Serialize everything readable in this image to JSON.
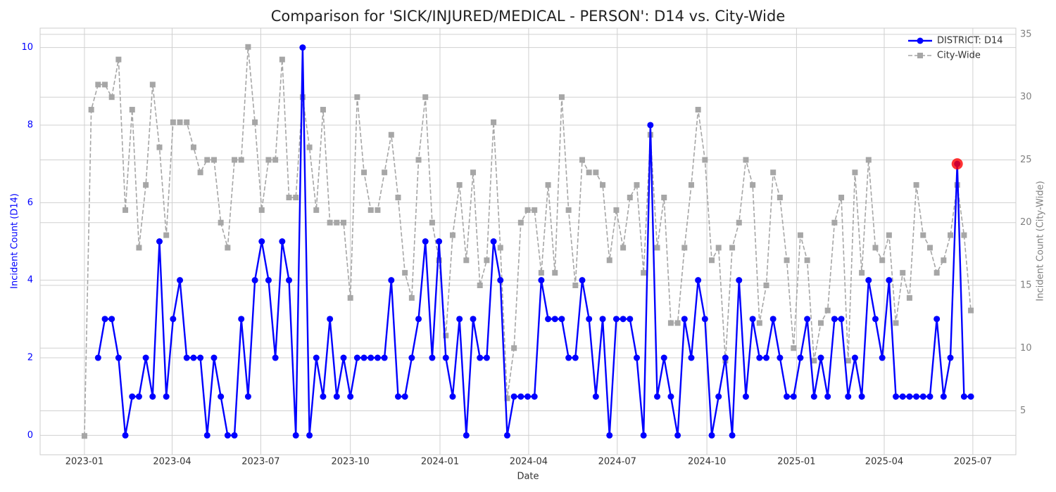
{
  "chart_data": {
    "type": "line",
    "title": "Comparison for 'SICK/INJURED/MEDICAL - PERSON': D14 vs. City-Wide",
    "xlabel": "Date",
    "ylabel": "Incident Count (D14)",
    "y2label": "Incident Count (City-Wide)",
    "xlim": [
      -6.5,
      136.6
    ],
    "xticks": [
      {
        "value": 0,
        "label": "2023-01"
      },
      {
        "value": 12.857,
        "label": "2023-04"
      },
      {
        "value": 25.857,
        "label": "2023-07"
      },
      {
        "value": 39,
        "label": "2023-10"
      },
      {
        "value": 52.143,
        "label": "2024-01"
      },
      {
        "value": 65.143,
        "label": "2024-04"
      },
      {
        "value": 78.143,
        "label": "2024-07"
      },
      {
        "value": 91.286,
        "label": "2024-10"
      },
      {
        "value": 104.43,
        "label": "2025-01"
      },
      {
        "value": 117.29,
        "label": "2025-04"
      },
      {
        "value": 130.29,
        "label": "2025-07"
      }
    ],
    "ylim": [
      -0.5,
      10.5
    ],
    "yticks": [
      0,
      2,
      4,
      6,
      8,
      10
    ],
    "y2lim": [
      1.5,
      35.5
    ],
    "y2ticks": [
      5,
      10,
      15,
      20,
      25,
      30,
      35
    ],
    "grid": true,
    "legend": "upper right",
    "ylabel_color": "#0000ff",
    "y2label_color": "#808080",
    "highlight_index": 128,
    "highlight_color": "#ff0000",
    "series": [
      {
        "name": "DISTRICT: D14",
        "color": "#0000ff",
        "marker": "circle",
        "dashed": false,
        "values": [
          null,
          null,
          2,
          3,
          3,
          2,
          0,
          1,
          1,
          2,
          1,
          5,
          1,
          3,
          4,
          2,
          2,
          2,
          0,
          2,
          1,
          0,
          0,
          3,
          1,
          4,
          5,
          4,
          2,
          5,
          4,
          0,
          10,
          0,
          2,
          1,
          3,
          1,
          2,
          1,
          2,
          2,
          2,
          2,
          2,
          4,
          1,
          1,
          2,
          3,
          5,
          2,
          5,
          2,
          1,
          3,
          0,
          3,
          2,
          2,
          5,
          4,
          0,
          1,
          1,
          1,
          1,
          4,
          3,
          3,
          3,
          2,
          2,
          4,
          3,
          1,
          3,
          0,
          3,
          3,
          3,
          2,
          0,
          8,
          1,
          2,
          1,
          0,
          3,
          2,
          4,
          3,
          0,
          1,
          2,
          0,
          4,
          1,
          3,
          2,
          2,
          3,
          2,
          1,
          1,
          2,
          3,
          1,
          2,
          1,
          3,
          3,
          1,
          2,
          1,
          4,
          3,
          2,
          4,
          1,
          1,
          1,
          1,
          1,
          1,
          3,
          1,
          2,
          7,
          1,
          1
        ]
      },
      {
        "name": "City-Wide",
        "color": "#a6a6a6",
        "marker": "square",
        "dashed": true,
        "axis": "y2",
        "values": [
          3,
          29,
          31,
          31,
          30,
          33,
          21,
          29,
          18,
          23,
          31,
          26,
          19,
          28,
          28,
          28,
          26,
          24,
          25,
          25,
          20,
          18,
          25,
          25,
          34,
          28,
          21,
          25,
          25,
          33,
          22,
          22,
          30,
          26,
          21,
          29,
          20,
          20,
          20,
          14,
          30,
          24,
          21,
          21,
          24,
          27,
          22,
          16,
          14,
          25,
          30,
          20,
          17,
          11,
          19,
          23,
          17,
          24,
          15,
          17,
          28,
          18,
          6,
          10,
          20,
          21,
          21,
          16,
          23,
          16,
          30,
          21,
          15,
          25,
          24,
          24,
          23,
          17,
          21,
          18,
          22,
          23,
          16,
          27,
          18,
          22,
          12,
          12,
          18,
          23,
          29,
          25,
          17,
          18,
          9,
          18,
          20,
          25,
          23,
          12,
          15,
          24,
          22,
          17,
          10,
          19,
          17,
          9,
          12,
          13,
          20,
          22,
          9,
          24,
          16,
          25,
          18,
          17,
          19,
          12,
          16,
          14,
          23,
          19,
          18,
          16,
          17,
          19,
          23,
          19,
          13
        ]
      }
    ]
  }
}
